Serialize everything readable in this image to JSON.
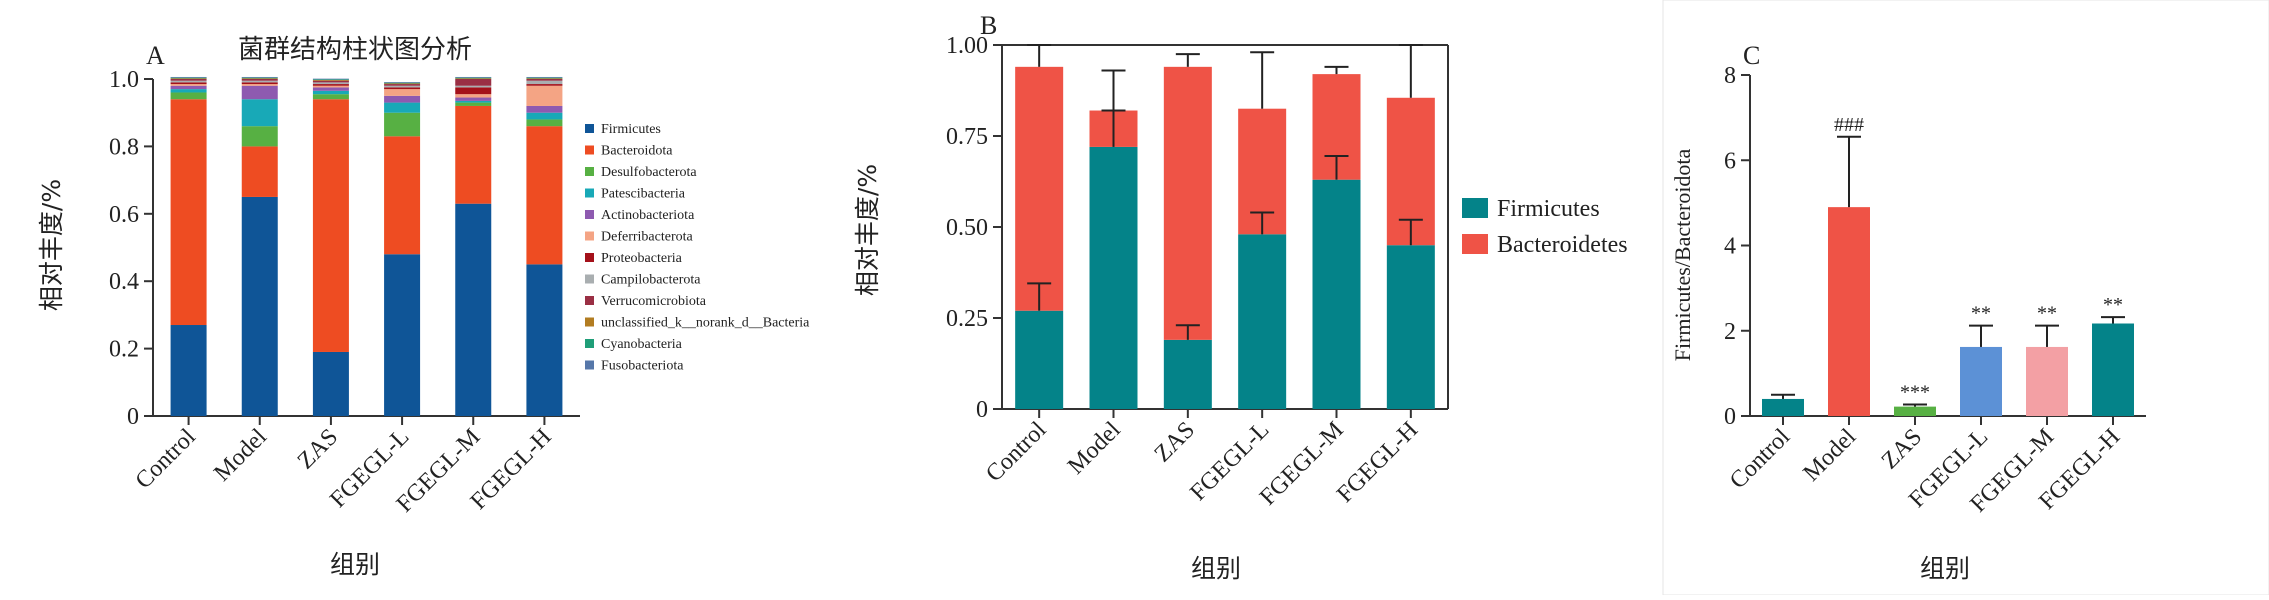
{
  "colors": {
    "firmicutes": "#0f5597",
    "bacteroidota": "#ee4c22",
    "desulfobacterota": "#57b043",
    "patescibacteria": "#18a9b7",
    "actinobacteriota": "#8e5ab0",
    "deferribacterota": "#f4a484",
    "proteobacteria": "#a4111a",
    "campilobacterota": "#a9aeb0",
    "verrucomicrobiota": "#9a2f44",
    "unclassified": "#b27c21",
    "cyanobacteria": "#1f9e78",
    "fusobacteriota": "#5677a9",
    "teal": "#048389",
    "salmon": "#ef5346",
    "blue_c": "#5c91d6",
    "pink_c": "#f3a0a4"
  },
  "chart_data": [
    {
      "panel": "A",
      "type": "bar",
      "stacked": true,
      "title": "菌群结构柱状图分析",
      "xlabel": "组别",
      "ylabel": "相对丰度/%",
      "ylim": [
        0,
        1.0
      ],
      "yticks": [
        "0",
        "0.2",
        "0.4",
        "0.6",
        "0.8",
        "1.0"
      ],
      "categories": [
        "Control",
        "Model",
        "ZAS",
        "FGEGL-L",
        "FGEGL-M",
        "FGEGL-H"
      ],
      "legend_position": "right",
      "series": [
        {
          "name": "Firmicutes",
          "color_key": "firmicutes",
          "values": [
            0.27,
            0.65,
            0.19,
            0.48,
            0.63,
            0.45
          ]
        },
        {
          "name": "Bacteroidota",
          "color_key": "bacteroidota",
          "values": [
            0.67,
            0.15,
            0.75,
            0.35,
            0.29,
            0.41
          ]
        },
        {
          "name": "Desulfobacterota",
          "color_key": "desulfobacterota",
          "values": [
            0.02,
            0.06,
            0.015,
            0.07,
            0.01,
            0.02
          ]
        },
        {
          "name": "Patescibacteria",
          "color_key": "patescibacteria",
          "values": [
            0.01,
            0.08,
            0.01,
            0.03,
            0.005,
            0.02
          ]
        },
        {
          "name": "Actinobacteriota",
          "color_key": "actinobacteriota",
          "values": [
            0.01,
            0.04,
            0.01,
            0.02,
            0.01,
            0.02
          ]
        },
        {
          "name": "Deferribacterota",
          "color_key": "deferribacterota",
          "values": [
            0.005,
            0.005,
            0.005,
            0.02,
            0.01,
            0.06
          ]
        },
        {
          "name": "Proteobacteria",
          "color_key": "proteobacteria",
          "values": [
            0.005,
            0.005,
            0.005,
            0.005,
            0.02,
            0.005
          ]
        },
        {
          "name": "Campilobacterota",
          "color_key": "campilobacterota",
          "values": [
            0.005,
            0.005,
            0.005,
            0.005,
            0.005,
            0.01
          ]
        },
        {
          "name": "Verrucomicrobiota",
          "color_key": "verrucomicrobiota",
          "values": [
            0.005,
            0.005,
            0.005,
            0.005,
            0.02,
            0.005
          ]
        },
        {
          "name": "unclassified_k__norank_d__Bacteria",
          "color_key": "unclassified",
          "values": [
            0.002,
            0.002,
            0.002,
            0.002,
            0.002,
            0.002
          ]
        },
        {
          "name": "Cyanobacteria",
          "color_key": "cyanobacteria",
          "values": [
            0.002,
            0.002,
            0.002,
            0.002,
            0.002,
            0.002
          ]
        },
        {
          "name": "Fusobacteriota",
          "color_key": "fusobacteriota",
          "values": [
            0.002,
            0.002,
            0.002,
            0.002,
            0.002,
            0.002
          ]
        }
      ]
    },
    {
      "panel": "B",
      "type": "bar",
      "stacked": true,
      "xlabel": "组别",
      "ylabel": "相对丰度/%",
      "ylim": [
        0,
        1.0
      ],
      "yticks": [
        "0",
        "0.25",
        "0.50",
        "0.75",
        "1.00"
      ],
      "categories": [
        "Control",
        "Model",
        "ZAS",
        "FGEGL-L",
        "FGEGL-M",
        "FGEGL-H"
      ],
      "legend_position": "right",
      "series": [
        {
          "name": "Firmicutes",
          "color_key": "teal",
          "values": [
            0.27,
            0.72,
            0.19,
            0.48,
            0.63,
            0.45
          ],
          "error": [
            0.075,
            0.1,
            0.04,
            0.06,
            0.065,
            0.07
          ]
        },
        {
          "name": "Bacteroidetes",
          "color_key": "salmon",
          "values": [
            0.67,
            0.1,
            0.75,
            0.345,
            0.29,
            0.405
          ],
          "error": [
            0.075,
            0.11,
            0.035,
            0.155,
            0.02,
            0.145
          ]
        }
      ]
    },
    {
      "panel": "C",
      "type": "bar",
      "xlabel": "组别",
      "ylabel": "Firmicutes/Bacteroidota",
      "ylim": [
        0,
        8
      ],
      "yticks": [
        "0",
        "2",
        "4",
        "6",
        "8"
      ],
      "categories": [
        "Control",
        "Model",
        "ZAS",
        "FGEGL-L",
        "FGEGL-M",
        "FGEGL-H"
      ],
      "values": [
        0.4,
        4.9,
        0.22,
        1.62,
        1.62,
        2.17
      ],
      "error": [
        0.1,
        1.65,
        0.05,
        0.5,
        0.5,
        0.15
      ],
      "color_keys": [
        "teal",
        "salmon",
        "desulfobacterota",
        "blue_c",
        "pink_c",
        "teal"
      ],
      "annotations": [
        "",
        "###",
        "***",
        "**",
        "**",
        "**"
      ]
    }
  ]
}
